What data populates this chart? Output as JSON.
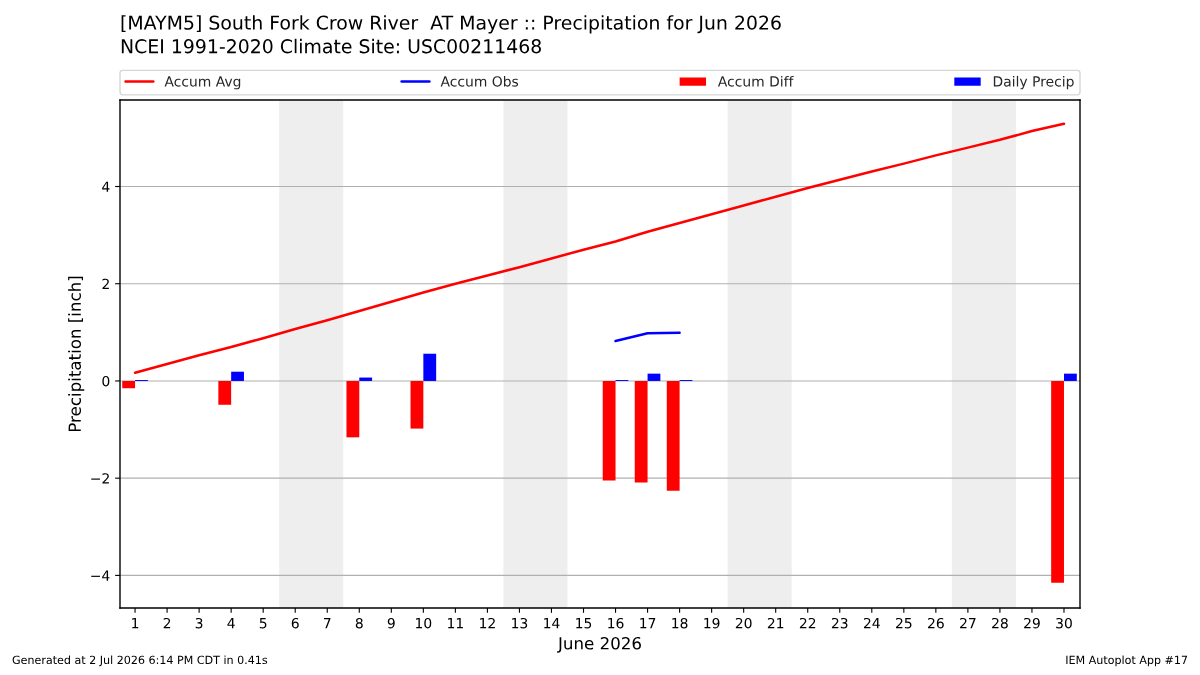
{
  "chart_data": {
    "type": "bar",
    "title": "[MAYM5] South Fork Crow River  AT Mayer :: Precipitation for Jun 2026",
    "subtitle": "NCEI 1991-2020 Climate Site: USC00211468",
    "xlabel": "June 2026",
    "ylabel": "Precipitation [inch]",
    "x": [
      1,
      2,
      3,
      4,
      5,
      6,
      7,
      8,
      9,
      10,
      11,
      12,
      13,
      14,
      15,
      16,
      17,
      18,
      19,
      20,
      21,
      22,
      23,
      24,
      25,
      26,
      27,
      28,
      29,
      30
    ],
    "series": [
      {
        "name": "Accum Avg",
        "type": "line",
        "color": "#ff0000",
        "values": [
          0.17,
          0.35,
          0.53,
          0.7,
          0.88,
          1.07,
          1.25,
          1.44,
          1.63,
          1.82,
          2.0,
          2.17,
          2.34,
          2.52,
          2.7,
          2.87,
          3.07,
          3.25,
          3.43,
          3.61,
          3.79,
          3.97,
          4.14,
          4.31,
          4.47,
          4.64,
          4.8,
          4.96,
          5.14,
          5.29
        ]
      },
      {
        "name": "Accum Obs",
        "type": "line",
        "color": "#0000ff",
        "values": [
          null,
          null,
          null,
          null,
          null,
          null,
          null,
          null,
          null,
          null,
          null,
          null,
          null,
          null,
          null,
          0.82,
          0.98,
          0.99,
          null,
          null,
          null,
          null,
          null,
          null,
          null,
          null,
          null,
          null,
          null,
          null
        ]
      },
      {
        "name": "Accum Diff",
        "color": "#ff0000",
        "values": [
          -0.15,
          null,
          null,
          -0.49,
          null,
          null,
          null,
          -1.16,
          null,
          -0.98,
          null,
          null,
          null,
          null,
          null,
          -2.05,
          -2.09,
          -2.26,
          null,
          null,
          null,
          null,
          null,
          null,
          null,
          null,
          null,
          null,
          null,
          -4.15
        ]
      },
      {
        "name": "Daily Precip",
        "color": "#0000ff",
        "values": [
          0.02,
          null,
          null,
          0.19,
          null,
          null,
          null,
          0.07,
          null,
          0.56,
          null,
          null,
          null,
          null,
          null,
          0.02,
          0.15,
          0.02,
          null,
          null,
          null,
          null,
          null,
          null,
          null,
          null,
          null,
          null,
          null,
          0.15
        ]
      }
    ],
    "xlim": [
      0.53,
      30.5
    ],
    "xticks": [
      1,
      2,
      3,
      4,
      5,
      6,
      7,
      8,
      9,
      10,
      11,
      12,
      13,
      14,
      15,
      16,
      17,
      18,
      19,
      20,
      21,
      22,
      23,
      24,
      25,
      26,
      27,
      28,
      29,
      30
    ],
    "ylim": [
      -4.67,
      5.78
    ],
    "yticks": [
      {
        "value": -4,
        "label": "−4"
      },
      {
        "value": -2,
        "label": "−2"
      },
      0,
      2,
      4
    ],
    "bands": [
      {
        "axis": "x",
        "from": 5.5,
        "to": 7.5,
        "color": "#eeeeee"
      },
      {
        "axis": "x",
        "from": 12.5,
        "to": 14.5,
        "color": "#eeeeee"
      },
      {
        "axis": "x",
        "from": 19.5,
        "to": 21.5,
        "color": "#eeeeee"
      },
      {
        "axis": "x",
        "from": 26.5,
        "to": 28.5,
        "color": "#eeeeee"
      }
    ],
    "grid": "y",
    "legend": "top",
    "annotations": [
      "Generated at 2 Jul 2026 6:14 PM CDT in 0.41s",
      "IEM Autoplot App #17"
    ]
  }
}
